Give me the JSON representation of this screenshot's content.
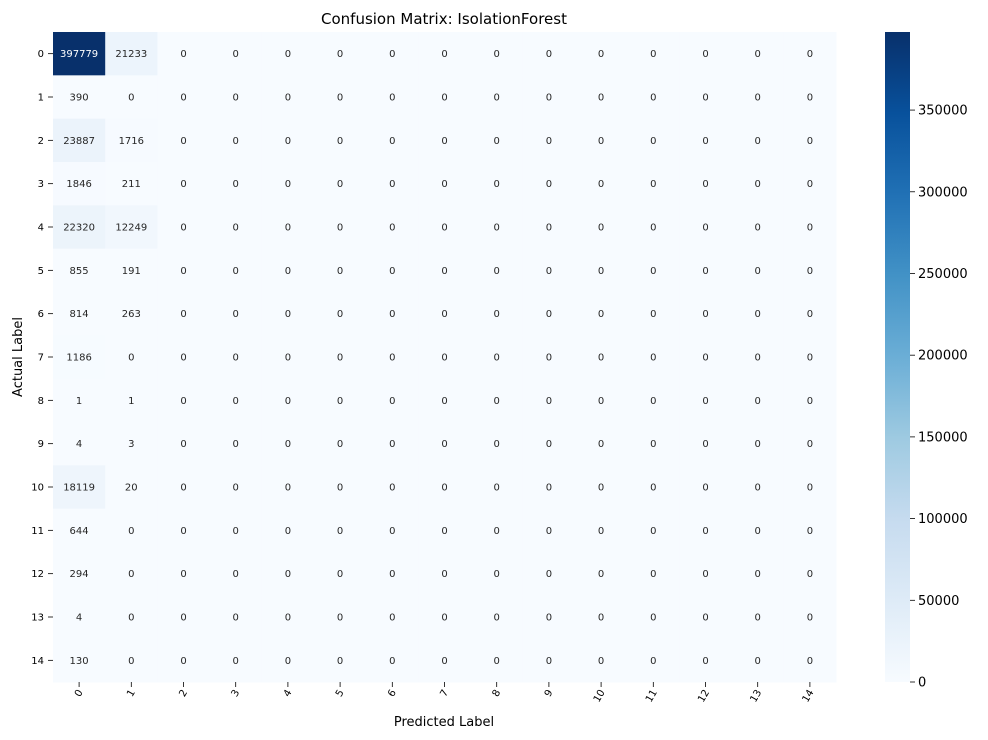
{
  "chart_data": {
    "type": "heatmap",
    "title": "Confusion Matrix: IsolationForest",
    "xlabel": "Predicted Label",
    "ylabel": "Actual Label",
    "x_categories": [
      "0",
      "1",
      "2",
      "3",
      "4",
      "5",
      "6",
      "7",
      "8",
      "9",
      "10",
      "11",
      "12",
      "13",
      "14"
    ],
    "y_categories": [
      "0",
      "1",
      "2",
      "3",
      "4",
      "5",
      "6",
      "7",
      "8",
      "9",
      "10",
      "11",
      "12",
      "13",
      "14"
    ],
    "values": [
      [
        397779,
        21233,
        0,
        0,
        0,
        0,
        0,
        0,
        0,
        0,
        0,
        0,
        0,
        0,
        0
      ],
      [
        390,
        0,
        0,
        0,
        0,
        0,
        0,
        0,
        0,
        0,
        0,
        0,
        0,
        0,
        0
      ],
      [
        23887,
        1716,
        0,
        0,
        0,
        0,
        0,
        0,
        0,
        0,
        0,
        0,
        0,
        0,
        0
      ],
      [
        1846,
        211,
        0,
        0,
        0,
        0,
        0,
        0,
        0,
        0,
        0,
        0,
        0,
        0,
        0
      ],
      [
        22320,
        12249,
        0,
        0,
        0,
        0,
        0,
        0,
        0,
        0,
        0,
        0,
        0,
        0,
        0
      ],
      [
        855,
        191,
        0,
        0,
        0,
        0,
        0,
        0,
        0,
        0,
        0,
        0,
        0,
        0,
        0
      ],
      [
        814,
        263,
        0,
        0,
        0,
        0,
        0,
        0,
        0,
        0,
        0,
        0,
        0,
        0,
        0
      ],
      [
        1186,
        0,
        0,
        0,
        0,
        0,
        0,
        0,
        0,
        0,
        0,
        0,
        0,
        0,
        0
      ],
      [
        1,
        1,
        0,
        0,
        0,
        0,
        0,
        0,
        0,
        0,
        0,
        0,
        0,
        0,
        0
      ],
      [
        4,
        3,
        0,
        0,
        0,
        0,
        0,
        0,
        0,
        0,
        0,
        0,
        0,
        0,
        0
      ],
      [
        18119,
        20,
        0,
        0,
        0,
        0,
        0,
        0,
        0,
        0,
        0,
        0,
        0,
        0,
        0
      ],
      [
        644,
        0,
        0,
        0,
        0,
        0,
        0,
        0,
        0,
        0,
        0,
        0,
        0,
        0,
        0
      ],
      [
        294,
        0,
        0,
        0,
        0,
        0,
        0,
        0,
        0,
        0,
        0,
        0,
        0,
        0,
        0
      ],
      [
        4,
        0,
        0,
        0,
        0,
        0,
        0,
        0,
        0,
        0,
        0,
        0,
        0,
        0,
        0
      ],
      [
        130,
        0,
        0,
        0,
        0,
        0,
        0,
        0,
        0,
        0,
        0,
        0,
        0,
        0,
        0
      ]
    ],
    "colormap": "Blues",
    "colorbar": {
      "range": [
        0,
        397779
      ],
      "ticks": [
        0,
        50000,
        100000,
        150000,
        200000,
        250000,
        300000,
        350000
      ],
      "tick_labels": [
        "0",
        "50000",
        "100000",
        "150000",
        "200000",
        "250000",
        "300000",
        "350000"
      ]
    },
    "colors": {
      "low": "#f7fbff",
      "high": "#08306b",
      "text_dark": "#262626",
      "text_light": "#ffffff"
    }
  }
}
